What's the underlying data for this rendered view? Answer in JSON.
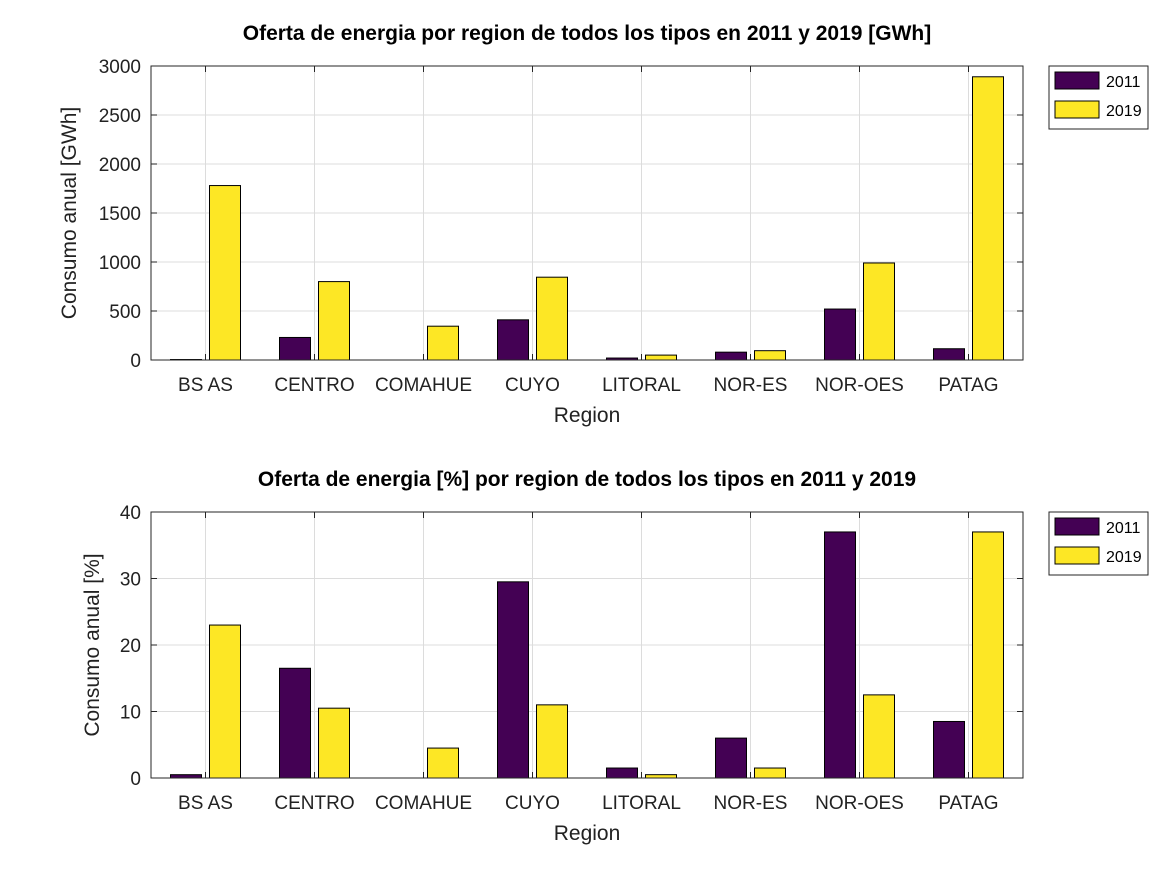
{
  "chart_data": [
    {
      "type": "bar",
      "title": "Oferta de energia por region de todos los tipos en 2011 y 2019 [GWh]",
      "xlabel": "Region",
      "ylabel": "Consumo anual [GWh]",
      "categories": [
        "BS AS",
        "CENTRO",
        "COMAHUE",
        "CUYO",
        "LITORAL",
        "NOR-ES",
        "NOR-OES",
        "PATAG"
      ],
      "ylim": [
        0,
        3000
      ],
      "yticks": [
        0,
        500,
        1000,
        1500,
        2000,
        2500,
        3000
      ],
      "grid": true,
      "legend_position": "outside top-right",
      "series": [
        {
          "name": "2011",
          "color": "#440154",
          "values": [
            5,
            230,
            0,
            410,
            20,
            80,
            520,
            115
          ]
        },
        {
          "name": "2019",
          "color": "#fde725",
          "values": [
            1780,
            800,
            345,
            845,
            50,
            95,
            990,
            2890
          ]
        }
      ]
    },
    {
      "type": "bar",
      "title": "Oferta de energia [%] por region de todos los tipos en 2011 y 2019",
      "xlabel": "Region",
      "ylabel": "Consumo anual [%]",
      "categories": [
        "BS AS",
        "CENTRO",
        "COMAHUE",
        "CUYO",
        "LITORAL",
        "NOR-ES",
        "NOR-OES",
        "PATAG"
      ],
      "ylim": [
        0,
        40
      ],
      "yticks": [
        0,
        10,
        20,
        30,
        40
      ],
      "grid": true,
      "legend_position": "outside top-right",
      "series": [
        {
          "name": "2011",
          "color": "#440154",
          "values": [
            0.5,
            16.5,
            0,
            29.5,
            1.5,
            6,
            37,
            8.5
          ]
        },
        {
          "name": "2019",
          "color": "#fde725",
          "values": [
            23,
            10.5,
            4.5,
            11,
            0.5,
            1.5,
            12.5,
            37
          ]
        }
      ]
    }
  ]
}
